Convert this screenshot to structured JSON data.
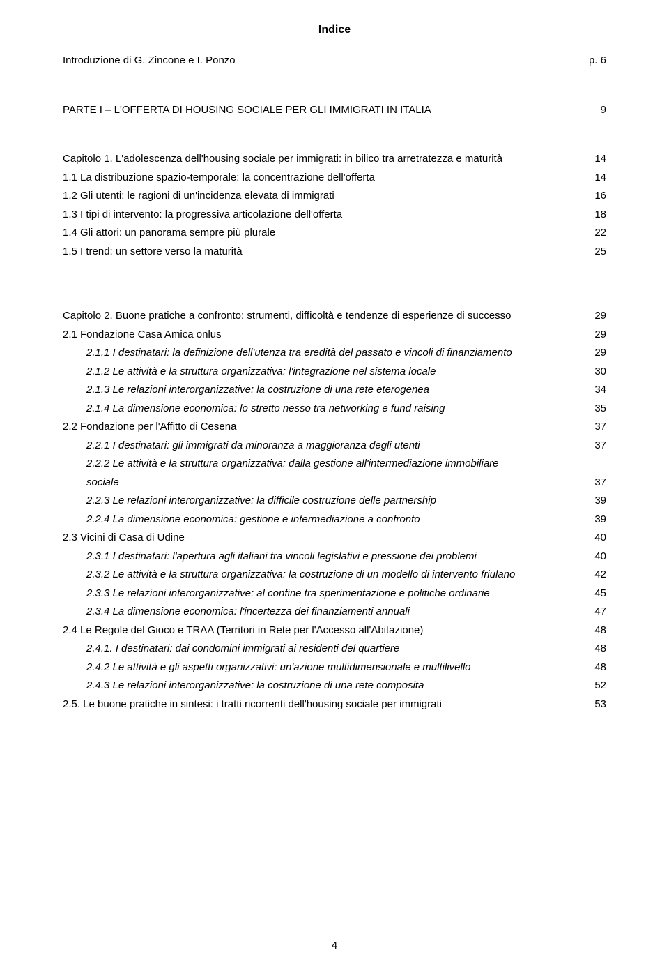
{
  "title": "Indice",
  "intro": {
    "text": "Introduzione    di G. Zincone e I. Ponzo",
    "page": "p. 6"
  },
  "part1": {
    "text": "PARTE I – L'OFFERTA DI HOUSING SOCIALE PER GLI IMMIGRATI IN ITALIA",
    "page": "9"
  },
  "ch1": {
    "title": {
      "text": "Capitolo 1. L'adolescenza dell'housing sociale per immigrati: in bilico tra arretratezza e maturità",
      "page": "14"
    },
    "s1": {
      "text": "1.1 La distribuzione spazio-temporale: la concentrazione dell'offerta",
      "page": "14"
    },
    "s2": {
      "text": "1.2 Gli utenti: le ragioni di un'incidenza elevata di immigrati",
      "page": "16"
    },
    "s3": {
      "text": "1.3 I tipi di intervento: la progressiva articolazione dell'offerta",
      "page": "18"
    },
    "s4": {
      "text": "1.4 Gli attori: un panorama sempre più plurale",
      "page": "22"
    },
    "s5": {
      "text": "1.5 I trend: un settore verso la maturità",
      "page": "25"
    }
  },
  "ch2": {
    "title": {
      "text": "Capitolo 2. Buone pratiche a confronto: strumenti, difficoltà e tendenze di esperienze di successo",
      "page": "29"
    },
    "s21": {
      "text": "2.1 Fondazione Casa Amica onlus",
      "page": "29"
    },
    "s211": {
      "text": "2.1.1 I destinatari: la definizione dell'utenza tra eredità del passato e vincoli di finanziamento",
      "page": "29"
    },
    "s212": {
      "text": "2.1.2 Le attività e la struttura organizzativa: l'integrazione nel sistema locale",
      "page": "30"
    },
    "s213": {
      "text": "2.1.3 Le relazioni interorganizzative: la costruzione di una rete eterogenea",
      "page": "34"
    },
    "s214": {
      "text": "2.1.4 La dimensione economica: lo stretto nesso tra networking e fund raising",
      "page": "35"
    },
    "s22": {
      "text": "2.2 Fondazione per l'Affitto di Cesena",
      "page": "37"
    },
    "s221": {
      "text": "2.2.1 I destinatari: gli immigrati da minoranza a maggioranza degli utenti",
      "page": "37"
    },
    "s222a": {
      "text": "2.2.2 Le attività e la struttura organizzativa: dalla gestione all'intermediazione immobiliare"
    },
    "s222b": {
      "text": "sociale",
      "page": "37"
    },
    "s223": {
      "text": "2.2.3 Le relazioni interorganizzative: la difficile costruzione delle partnership",
      "page": "39"
    },
    "s224": {
      "text": "2.2.4 La dimensione economica: gestione e intermediazione a confronto",
      "page": "39"
    },
    "s23": {
      "text": "2.3 Vicini di Casa di Udine",
      "page": "40"
    },
    "s231": {
      "text": "2.3.1 I destinatari: l'apertura agli italiani tra vincoli legislativi e pressione dei problemi",
      "page": "40"
    },
    "s232": {
      "text": "2.3.2 Le attività e la struttura organizzativa: la costruzione di un modello di intervento friulano",
      "page": "42"
    },
    "s233": {
      "text": "2.3.3 Le relazioni interorganizzative: al confine tra sperimentazione e politiche ordinarie",
      "page": "45"
    },
    "s234": {
      "text": "2.3.4 La dimensione economica: l'incertezza dei finanziamenti annuali",
      "page": "47"
    },
    "s24": {
      "text": "2.4 Le Regole del Gioco e TRAA (Territori in Rete per l'Accesso all'Abitazione)",
      "page": "48"
    },
    "s241": {
      "text": "2.4.1. I destinatari: dai condomini immigrati ai residenti del quartiere",
      "page": "48"
    },
    "s242": {
      "text": "2.4.2 Le attività e gli aspetti organizzativi: un'azione multidimensionale e multilivello",
      "page": "48"
    },
    "s243": {
      "text": "2.4.3 Le relazioni interorganizzative: la costruzione di una rete composita",
      "page": "52"
    },
    "s25": {
      "text": "2.5. Le buone pratiche in sintesi: i tratti ricorrenti dell'housing sociale per immigrati",
      "page": "53"
    }
  },
  "footer_page": "4"
}
